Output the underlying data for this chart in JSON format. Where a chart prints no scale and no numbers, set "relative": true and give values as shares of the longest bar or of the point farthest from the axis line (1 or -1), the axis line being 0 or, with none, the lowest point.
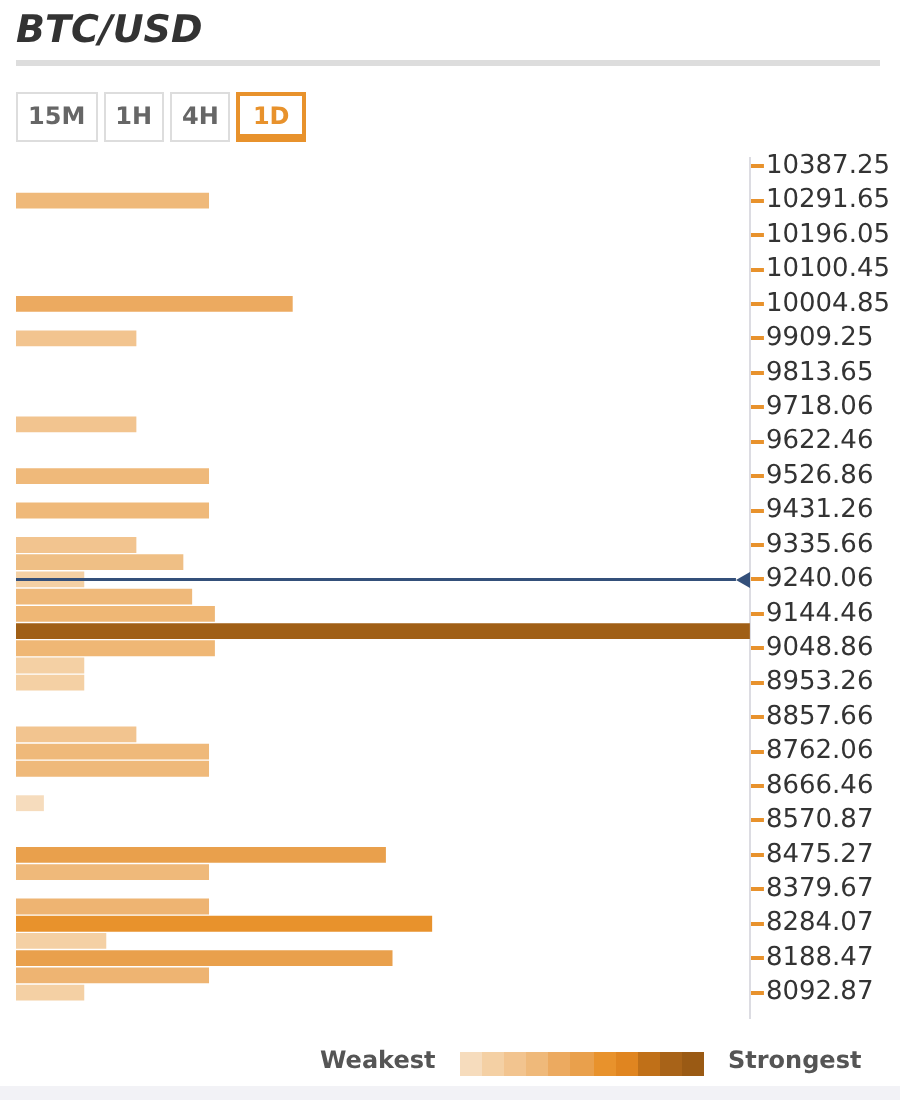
{
  "chart_data": {
    "type": "bar",
    "orientation": "horizontal",
    "relative": true,
    "title": "BTC/USD",
    "annotations": [
      "15M",
      "1H",
      "4H",
      "1D",
      "Weakest",
      "Strongest"
    ],
    "x": [
      10291.65,
      10004.85,
      9909.25,
      9670.25,
      9526.85,
      9431.25,
      9335.65,
      9287.85,
      9240.05,
      9192.25,
      9144.45,
      9096.65,
      9048.85,
      9001.05,
      8953.25,
      8809.85,
      8762.05,
      8714.25,
      8618.65,
      8475.25,
      8427.45,
      8331.85,
      8284.05,
      8236.25,
      8188.45,
      8140.65,
      8092.85
    ],
    "values": [
      0.263,
      0.377,
      0.164,
      0.164,
      0.263,
      0.263,
      0.164,
      0.228,
      0.093,
      0.24,
      0.271,
      1,
      0.271,
      0.093,
      0.093,
      0.164,
      0.263,
      0.263,
      0.038,
      0.504,
      0.263,
      0.263,
      0.567,
      0.123,
      0.513,
      0.263,
      0.093
    ],
    "colors": [
      "#efb97a",
      "#ecaa60",
      "#f2c48f",
      "#f2c48f",
      "#efb97a",
      "#efb97a",
      "#f2c48f",
      "#efbf85",
      "#f4d0a4",
      "#efb97a",
      "#efb775",
      "#a05f16",
      "#efb775",
      "#f4d0a4",
      "#f4d0a4",
      "#f2c48f",
      "#efb97a",
      "#efb97a",
      "#f6dcbd",
      "#e9a04c",
      "#efb97a",
      "#eeb472",
      "#e8922c",
      "#f4d0a4",
      "#e9a04c",
      "#eeb472",
      "#f4d0a4"
    ],
    "ylim": [
      8021.17,
      10411.15
    ],
    "yticks": [
      10387.25,
      10291.65,
      10196.05,
      10100.45,
      10004.85,
      9909.25,
      9813.65,
      9718.06,
      9622.46,
      9526.86,
      9431.26,
      9335.66,
      9240.06,
      9144.46,
      9048.86,
      8953.26,
      8857.66,
      8762.06,
      8666.46,
      8570.87,
      8475.27,
      8379.67,
      8284.07,
      8188.47,
      8092.87
    ],
    "ref_lines": [
      {
        "axis": "y",
        "value": 9240.06,
        "color": "#34507a"
      }
    ],
    "grid": false,
    "legend": false
  }
}
